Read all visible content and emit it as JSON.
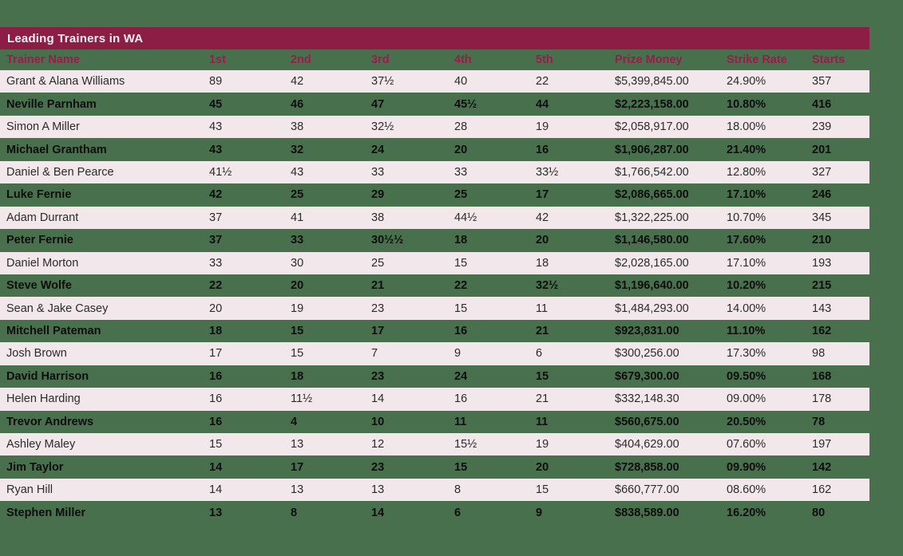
{
  "chart_data": {
    "type": "table",
    "title": "Leading Trainers in WA",
    "columns": [
      "Trainer Name",
      "1st",
      "2nd",
      "3rd",
      "4th",
      "5th",
      "Prize Money",
      "Strike Rate",
      "Starts"
    ],
    "rows": [
      [
        "Grant & Alana Williams",
        "89",
        "42",
        "37½",
        "40",
        "22",
        "$5,399,845.00",
        "24.90%",
        "357"
      ],
      [
        "Neville Parnham",
        "45",
        "46",
        "47",
        "45½",
        "44",
        "$2,223,158.00",
        "10.80%",
        "416"
      ],
      [
        "Simon A Miller",
        "43",
        "38",
        "32½",
        "28",
        "19",
        "$2,058,917.00",
        "18.00%",
        "239"
      ],
      [
        "Michael Grantham",
        "43",
        "32",
        "24",
        "20",
        "16",
        "$1,906,287.00",
        "21.40%",
        "201"
      ],
      [
        "Daniel & Ben Pearce",
        "41½",
        "43",
        "33",
        "33",
        "33½",
        "$1,766,542.00",
        "12.80%",
        "327"
      ],
      [
        "Luke Fernie",
        "42",
        "25",
        "29",
        "25",
        "17",
        "$2,086,665.00",
        "17.10%",
        "246"
      ],
      [
        "Adam Durrant",
        "37",
        "41",
        "38",
        "44½",
        "42",
        "$1,322,225.00",
        "10.70%",
        "345"
      ],
      [
        "Peter Fernie",
        "37",
        "33",
        "30½½",
        "18",
        "20",
        "$1,146,580.00",
        "17.60%",
        "210"
      ],
      [
        "Daniel Morton",
        "33",
        "30",
        "25",
        "15",
        "18",
        "$2,028,165.00",
        "17.10%",
        "193"
      ],
      [
        "Steve Wolfe",
        "22",
        "20",
        "21",
        "22",
        "32½",
        "$1,196,640.00",
        "10.20%",
        "215"
      ],
      [
        "Sean & Jake Casey",
        "20",
        "19",
        "23",
        "15",
        "11",
        "$1,484,293.00",
        "14.00%",
        "143"
      ],
      [
        "Mitchell Pateman",
        "18",
        "15",
        "17",
        "16",
        "21",
        "$923,831.00",
        "11.10%",
        "162"
      ],
      [
        "Josh Brown",
        "17",
        "15",
        "7",
        "9",
        "6",
        "$300,256.00",
        "17.30%",
        "98"
      ],
      [
        "David Harrison",
        "16",
        "18",
        "23",
        "24",
        "15",
        "$679,300.00",
        "09.50%",
        "168"
      ],
      [
        "Helen Harding",
        "16",
        "11½",
        "14",
        "16",
        "21",
        "$332,148.30",
        "09.00%",
        "178"
      ],
      [
        "Trevor Andrews",
        "16",
        "4",
        "10",
        "11",
        "11",
        "$560,675.00",
        "20.50%",
        "78"
      ],
      [
        "Ashley Maley",
        "15",
        "13",
        "12",
        "15½",
        "19",
        "$404,629.00",
        "07.60%",
        "197"
      ],
      [
        "Jim Taylor",
        "14",
        "17",
        "23",
        "15",
        "20",
        "$728,858.00",
        "09.90%",
        "142"
      ],
      [
        "Ryan Hill",
        "14",
        "13",
        "13",
        "8",
        "15",
        "$660,777.00",
        "08.60%",
        "162"
      ],
      [
        "Stephen Miller",
        "13",
        "8",
        "14",
        "6",
        "9",
        "$838,589.00",
        "16.20%",
        "80"
      ]
    ]
  },
  "colors": {
    "background": "#48704c",
    "header_bar": "#8c1d45",
    "header_text": "#9a1c4a",
    "row_light": "#f2e8eb",
    "row_light_text": "#2d2a2b",
    "row_dark_text": "#0e0e0e",
    "title_text": "#f5eef1"
  }
}
